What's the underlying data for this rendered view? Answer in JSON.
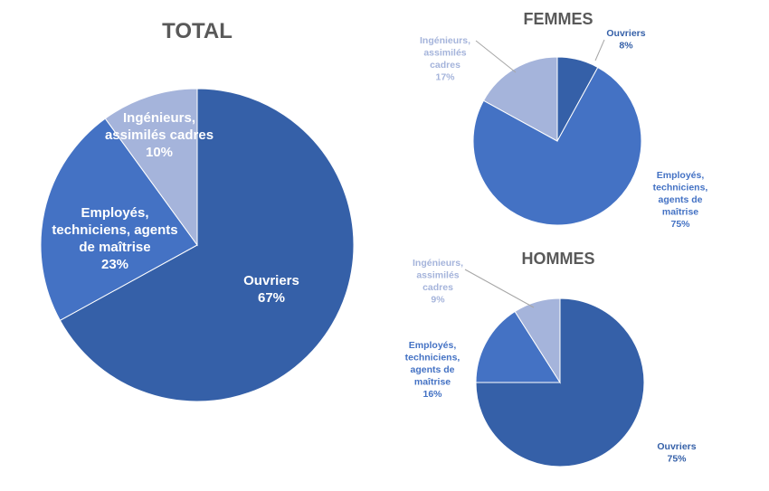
{
  "colors": {
    "ouvriers": "#3560A8",
    "employes": "#4472C4",
    "ingenieurs": "#A5B4DB",
    "title": "#595959",
    "leader": "#A6A6A6"
  },
  "chart_data": [
    {
      "type": "pie",
      "title": "TOTAL",
      "slices": [
        {
          "key": "ouvriers",
          "lines": [
            "Ouvriers"
          ],
          "percent_label": "67%",
          "value": 67
        },
        {
          "key": "employes",
          "lines": [
            "Employés,",
            "techniciens, agents",
            "de maîtrise"
          ],
          "percent_label": "23%",
          "value": 23
        },
        {
          "key": "ingenieurs",
          "lines": [
            "Ingénieurs,",
            "assimilés cadres"
          ],
          "percent_label": "10%",
          "value": 10
        }
      ]
    },
    {
      "type": "pie",
      "title": "FEMMES",
      "slices": [
        {
          "key": "ouvriers",
          "lines": [
            "Ouvriers"
          ],
          "percent_label": "8%",
          "value": 8
        },
        {
          "key": "employes",
          "lines": [
            "Employés,",
            "techniciens,",
            "agents de",
            "maîtrise"
          ],
          "percent_label": "75%",
          "value": 75
        },
        {
          "key": "ingenieurs",
          "lines": [
            "Ingénieurs,",
            "assimilés",
            "cadres"
          ],
          "percent_label": "17%",
          "value": 17
        }
      ]
    },
    {
      "type": "pie",
      "title": "HOMMES",
      "slices": [
        {
          "key": "ouvriers",
          "lines": [
            "Ouvriers"
          ],
          "percent_label": "75%",
          "value": 75
        },
        {
          "key": "employes",
          "lines": [
            "Employés,",
            "techniciens,",
            "agents de",
            "maîtrise"
          ],
          "percent_label": "16%",
          "value": 16
        },
        {
          "key": "ingenieurs",
          "lines": [
            "Ingénieurs,",
            "assimilés",
            "cadres"
          ],
          "percent_label": "9%",
          "value": 9
        }
      ]
    }
  ]
}
